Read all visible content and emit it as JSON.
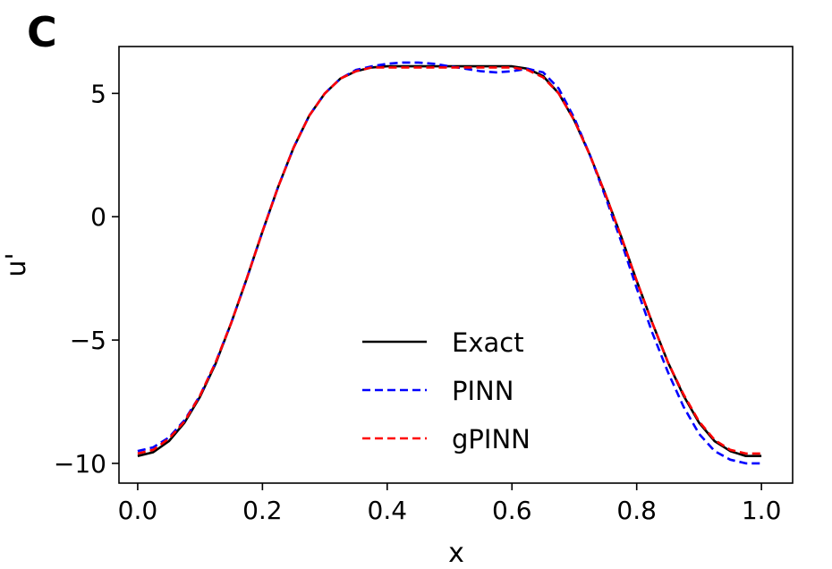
{
  "panel_label": "C",
  "chart_data": {
    "type": "line",
    "xlabel": "x",
    "ylabel": "u'",
    "xlim": [
      -0.03,
      1.05
    ],
    "ylim": [
      -10.8,
      6.9
    ],
    "xticks": [
      0.0,
      0.2,
      0.4,
      0.6,
      0.8,
      1.0
    ],
    "xtick_labels": [
      "0.0",
      "0.2",
      "0.4",
      "0.6",
      "0.8",
      "1.0"
    ],
    "yticks": [
      -10,
      -5,
      0,
      5
    ],
    "ytick_labels": [
      "−10",
      "−5",
      "0",
      "5"
    ],
    "legend_position": "lower-center",
    "series": [
      {
        "name": "Exact",
        "color": "#000000",
        "style": "solid",
        "x": [
          0.0,
          0.025,
          0.05,
          0.075,
          0.1,
          0.125,
          0.15,
          0.175,
          0.2,
          0.225,
          0.25,
          0.275,
          0.3,
          0.325,
          0.35,
          0.375,
          0.4,
          0.425,
          0.45,
          0.475,
          0.5,
          0.525,
          0.55,
          0.575,
          0.6,
          0.625,
          0.65,
          0.675,
          0.7,
          0.725,
          0.75,
          0.775,
          0.8,
          0.825,
          0.85,
          0.875,
          0.9,
          0.925,
          0.95,
          0.975,
          1.0
        ],
        "y": [
          -9.7,
          -9.55,
          -9.1,
          -8.35,
          -7.3,
          -5.95,
          -4.3,
          -2.5,
          -0.6,
          1.2,
          2.8,
          4.1,
          5.0,
          5.6,
          5.9,
          6.05,
          6.1,
          6.1,
          6.1,
          6.1,
          6.1,
          6.1,
          6.1,
          6.1,
          6.1,
          6.0,
          5.7,
          5.0,
          3.9,
          2.5,
          0.9,
          -0.8,
          -2.6,
          -4.3,
          -5.9,
          -7.25,
          -8.35,
          -9.1,
          -9.5,
          -9.7,
          -9.7
        ]
      },
      {
        "name": "PINN",
        "color": "#0000ff",
        "style": "dashed",
        "x": [
          0.0,
          0.025,
          0.05,
          0.075,
          0.1,
          0.125,
          0.15,
          0.175,
          0.2,
          0.225,
          0.25,
          0.275,
          0.3,
          0.325,
          0.35,
          0.375,
          0.4,
          0.425,
          0.45,
          0.475,
          0.5,
          0.525,
          0.55,
          0.575,
          0.6,
          0.625,
          0.65,
          0.675,
          0.7,
          0.725,
          0.75,
          0.775,
          0.8,
          0.825,
          0.85,
          0.875,
          0.9,
          0.925,
          0.95,
          0.975,
          1.0
        ],
        "y": [
          -9.5,
          -9.35,
          -8.95,
          -8.25,
          -7.25,
          -5.9,
          -4.3,
          -2.5,
          -0.6,
          1.2,
          2.8,
          4.1,
          5.0,
          5.6,
          5.95,
          6.1,
          6.2,
          6.25,
          6.25,
          6.2,
          6.1,
          6.0,
          5.9,
          5.85,
          5.9,
          6.0,
          5.85,
          5.2,
          4.0,
          2.5,
          0.8,
          -1.0,
          -2.9,
          -4.7,
          -6.3,
          -7.7,
          -8.8,
          -9.5,
          -9.85,
          -10.0,
          -10.0
        ]
      },
      {
        "name": "gPINN",
        "color": "#ff0000",
        "style": "dashed",
        "x": [
          0.0,
          0.025,
          0.05,
          0.075,
          0.1,
          0.125,
          0.15,
          0.175,
          0.2,
          0.225,
          0.25,
          0.275,
          0.3,
          0.325,
          0.35,
          0.375,
          0.4,
          0.425,
          0.45,
          0.475,
          0.5,
          0.525,
          0.55,
          0.575,
          0.6,
          0.625,
          0.65,
          0.675,
          0.7,
          0.725,
          0.75,
          0.775,
          0.8,
          0.825,
          0.85,
          0.875,
          0.9,
          0.925,
          0.95,
          0.975,
          1.0
        ],
        "y": [
          -9.6,
          -9.45,
          -9.0,
          -8.3,
          -7.25,
          -5.9,
          -4.3,
          -2.5,
          -0.6,
          1.2,
          2.8,
          4.1,
          5.0,
          5.6,
          5.9,
          6.05,
          6.05,
          6.05,
          6.05,
          6.05,
          6.05,
          6.05,
          6.05,
          6.05,
          6.05,
          5.95,
          5.65,
          5.0,
          3.9,
          2.5,
          0.9,
          -0.8,
          -2.6,
          -4.3,
          -5.9,
          -7.2,
          -8.3,
          -9.05,
          -9.45,
          -9.6,
          -9.6
        ]
      }
    ]
  }
}
